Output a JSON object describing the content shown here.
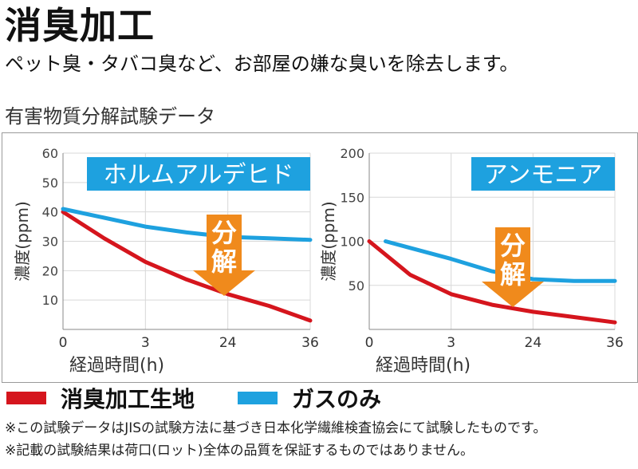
{
  "header": {
    "title": "消臭加工",
    "subtitle": "ペット臭・タバコ臭など、お部屋の嫌な臭いを除去します。"
  },
  "section": {
    "title": "有害物質分解試験データ"
  },
  "colors": {
    "treated": "#d5151d",
    "gas_only": "#1ea1df",
    "badge_bg": "#1ea1df",
    "arrow": "#f08a1c",
    "grid": "#d8d8d8"
  },
  "chart_data": [
    {
      "type": "line",
      "badge": "ホルムアルデヒド",
      "xlabel": "経過時間(h)",
      "ylabel": "濃度(ppm)",
      "x_ticks": [
        "0",
        "3",
        "24",
        "36"
      ],
      "y_ticks": [
        "10",
        "20",
        "30",
        "40",
        "50",
        "60"
      ],
      "ylim": [
        0,
        60
      ],
      "arrow_text": [
        "分",
        "解"
      ],
      "series": [
        {
          "name": "消臭加工生地",
          "color_key": "treated",
          "points": [
            [
              0,
              40
            ],
            [
              0.5,
              31
            ],
            [
              1,
              23
            ],
            [
              1.5,
              17
            ],
            [
              2,
              12
            ],
            [
              2.5,
              8
            ],
            [
              3,
              3
            ]
          ]
        },
        {
          "name": "ガスのみ",
          "color_key": "gas_only",
          "points": [
            [
              0,
              41
            ],
            [
              0.5,
              38
            ],
            [
              1,
              35
            ],
            [
              1.5,
              33
            ],
            [
              2,
              31.5
            ],
            [
              2.5,
              31
            ],
            [
              3,
              30.5
            ]
          ]
        }
      ]
    },
    {
      "type": "line",
      "badge": "アンモニア",
      "xlabel": "経過時間(h)",
      "ylabel": "濃度(ppm)",
      "x_ticks": [
        "0",
        "3",
        "24",
        "36"
      ],
      "y_ticks": [
        "50",
        "100",
        "150",
        "200"
      ],
      "ylim": [
        0,
        200
      ],
      "arrow_text": [
        "分",
        "解"
      ],
      "series": [
        {
          "name": "消臭加工生地",
          "color_key": "treated",
          "points": [
            [
              0,
              100
            ],
            [
              0.5,
              62
            ],
            [
              1,
              40
            ],
            [
              1.5,
              28
            ],
            [
              2,
              20
            ],
            [
              2.5,
              14
            ],
            [
              3,
              8
            ]
          ]
        },
        {
          "name": "ガスのみ",
          "color_key": "gas_only",
          "points": [
            [
              0.2,
              100
            ],
            [
              0.6,
              90
            ],
            [
              1,
              80
            ],
            [
              1.5,
              66
            ],
            [
              2,
              57
            ],
            [
              2.5,
              55
            ],
            [
              3,
              55
            ]
          ]
        }
      ]
    }
  ],
  "legend": [
    {
      "label": "消臭加工生地",
      "color_key": "treated"
    },
    {
      "label": "ガスのみ",
      "color_key": "gas_only"
    }
  ],
  "notes": [
    "※この試験データはJISの試験方法に基づき日本化学繊維検査協会にて試験したものです。",
    "※記載の試験結果は荷口(ロット)全体の品質を保証するものではありません。"
  ]
}
